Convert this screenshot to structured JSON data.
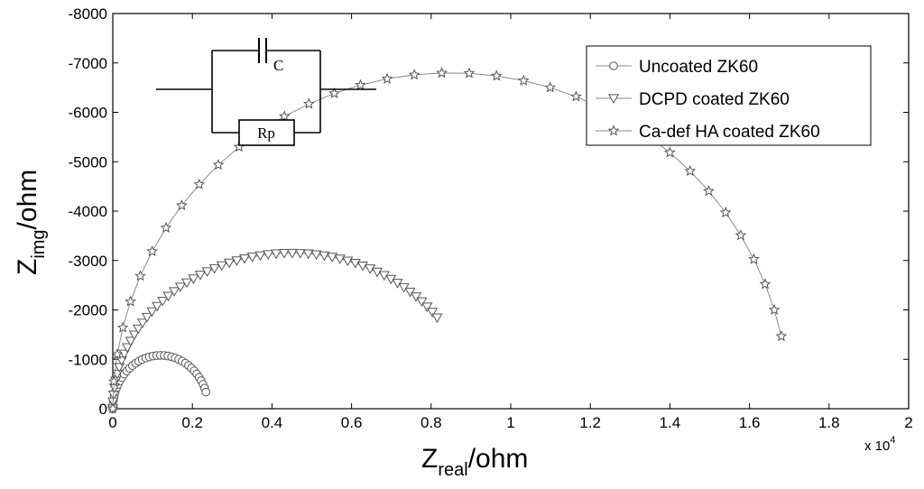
{
  "chart_data": {
    "type": "scatter",
    "title": "",
    "xlabel": {
      "main": "Z",
      "sub": "real",
      "rest": "/ohm"
    },
    "ylabel": {
      "main": "Z",
      "sub": "img",
      "rest": "/ohm"
    },
    "xlim": [
      0,
      20000
    ],
    "ylim": [
      0,
      -8000
    ],
    "x_ticks": [
      0,
      2000,
      4000,
      6000,
      8000,
      10000,
      12000,
      14000,
      16000,
      18000,
      20000
    ],
    "x_tick_labels": [
      "0",
      "0.2",
      "0.4",
      "0.6",
      "0.8",
      "1",
      "1.2",
      "1.4",
      "1.6",
      "1.8",
      "2"
    ],
    "x_multiplier": {
      "base": "x 10",
      "exp": "4"
    },
    "y_ticks": [
      0,
      -1000,
      -2000,
      -3000,
      -4000,
      -5000,
      -6000,
      -7000,
      -8000
    ],
    "y_tick_labels": [
      "0",
      "-1000",
      "-2000",
      "-3000",
      "-4000",
      "-5000",
      "-6000",
      "-7000",
      "-8000"
    ],
    "grid": false,
    "legend_position": "top-right",
    "inset": {
      "type": "equivalent-circuit",
      "capacitor_label": "C",
      "resistor_label": "Rp"
    },
    "series": [
      {
        "name": "Uncoated ZK60",
        "marker": "circle",
        "color": "#555555",
        "arc": {
          "r_s": 0,
          "r_p": 2400,
          "depression": 0.1
        },
        "points": 36,
        "x_end": 2340
      },
      {
        "name": "DCPD coated ZK60",
        "marker": "triangle-down",
        "color": "#555555",
        "arc": {
          "r_s": 0,
          "r_p": 9000,
          "depression": 0.3
        },
        "points": 56,
        "x_end": 8150
      },
      {
        "name": "Ca-def HA coated ZK60",
        "marker": "star",
        "color": "#555555",
        "arc": {
          "r_s": 0,
          "r_p": 17000,
          "depression": 0.2
        },
        "points": 36,
        "x_end": 16800
      }
    ]
  }
}
